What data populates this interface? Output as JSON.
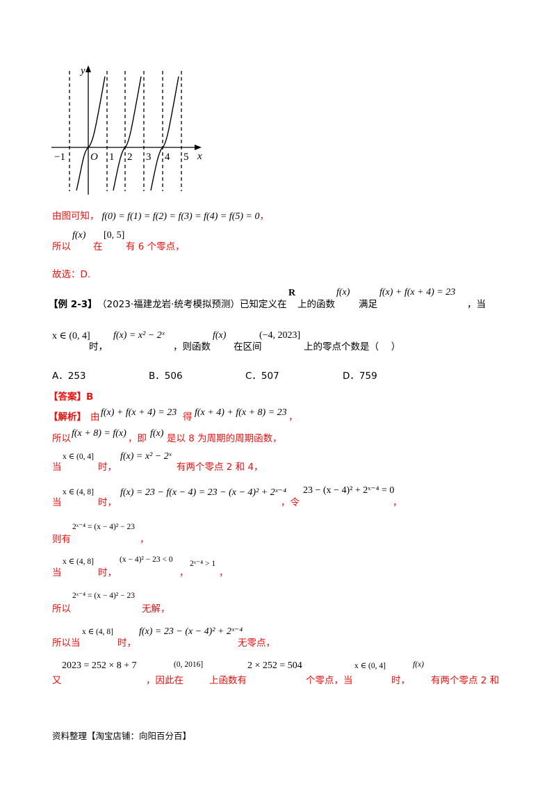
{
  "graph": {
    "y_label": "y",
    "x_label": "x",
    "origin_label": "O",
    "tick_labels": [
      "−1",
      "1",
      "2",
      "3",
      "4",
      "5"
    ]
  },
  "lines": {
    "l1_a": "由图可知，",
    "l1_math": "f(0) = f(1) = f(2) = f(3) = f(4) = f(5) = 0",
    "l1_b": "，",
    "l2_a": "所以",
    "l2_m1": "f(x)",
    "l2_b": "在",
    "l2_m2": "[0, 5]",
    "l2_c": "有 6 个零点，",
    "l3": "故选：D.",
    "ex_tag": "【例 2-3】",
    "ex_a": "（2023·福建龙岩·统考模拟预测）已知定义在",
    "ex_R": "R",
    "ex_b": "上的函数",
    "ex_m1": "f(x)",
    "ex_c": "满足",
    "ex_m2": "f(x) + f(x + 4) = 23",
    "ex_d": "，当",
    "ex2_m1": "x ∈ (0, 4]",
    "ex2_a": "时，",
    "ex2_m2": "f(x) = x² − 2ˣ",
    "ex2_b": "，则函数",
    "ex2_m3": "f(x)",
    "ex2_c": "在区间",
    "ex2_m4": "(−4, 2023]",
    "ex2_d": "上的零点个数是（　 ）",
    "opt_a": "A．253",
    "opt_b": "B．506",
    "opt_c": "C．507",
    "opt_d": "D．759",
    "answer": "【答案】B",
    "jx_tag": "【解析】",
    "jx_a": "由",
    "jx_m1": "f(x) + f(x + 4) = 23",
    "jx_b": "得",
    "jx_m2": "f(x + 4) + f(x + 8) = 23",
    "jx_c": "，",
    "s1_a": "所以",
    "s1_m1": "f(x + 8) = f(x)",
    "s1_b": "，即",
    "s1_m2": "f(x)",
    "s1_c": "是以 8 为周期的周期函数，",
    "s2_a": "当",
    "s2_m1": "x ∈ (0, 4]",
    "s2_b": "时，",
    "s2_m2": "f(x) = x² − 2ˣ",
    "s2_c": "有两个零点 2 和 4，",
    "s3_a": "当",
    "s3_m1": "x ∈ (4, 8]",
    "s3_b": "时，",
    "s3_m2": "f(x) = 23 − f(x − 4) = 23 − (x − 4)² + 2ˣ⁻⁴",
    "s3_c": "，令",
    "s3_m3": "23 − (x − 4)² + 2ˣ⁻⁴ = 0",
    "s3_d": "，",
    "s4_a": "则有",
    "s4_m1": "2ˣ⁻⁴ = (x − 4)² − 23",
    "s4_b": "，",
    "s5_a": "当",
    "s5_m1": "x ∈ (4, 8]",
    "s5_b": "时，",
    "s5_m2": "(x − 4)² − 23 < 0",
    "s5_c": "，",
    "s5_m3": "2ˣ⁻⁴ > 1",
    "s5_d": "，",
    "s6_a": "所以",
    "s6_m1": "2ˣ⁻⁴ = (x − 4)² − 23",
    "s6_b": "无解，",
    "s7_a": "所以当",
    "s7_m1": "x ∈ (4, 8]",
    "s7_b": "时，",
    "s7_m2": "f(x) = 23 − (x − 4)² + 2ˣ⁻⁴",
    "s7_c": "无零点，",
    "s8_a": "又",
    "s8_m1": "2023 = 252 × 8 + 7",
    "s8_b": "，因此在",
    "s8_m2": "(0, 2016]",
    "s8_c": "上函数有",
    "s8_m3": "2 × 252 = 504",
    "s8_d": "个零点，当",
    "s8_m4": "x ∈ (0, 4]",
    "s8_e": "时，",
    "s8_m5": "f(x)",
    "s8_f": "有两个零点 2 和"
  },
  "footer": "资料整理【淘宝店铺：向阳百分百】",
  "colors": {
    "accent_red": "#e8110f",
    "text": "#000000"
  }
}
